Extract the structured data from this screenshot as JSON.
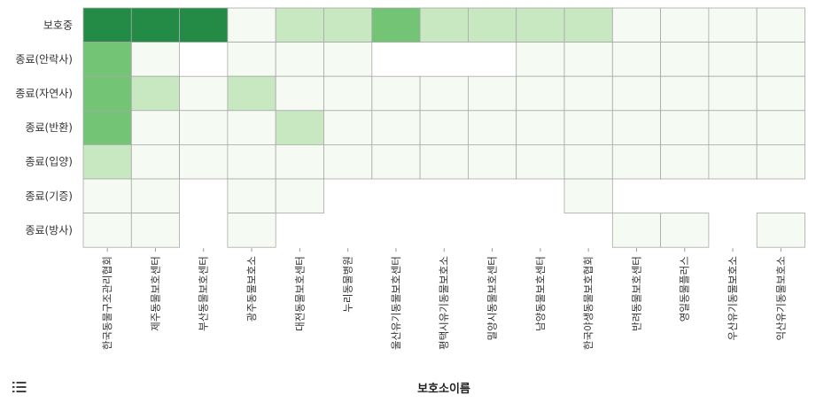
{
  "chart_data": {
    "type": "heatmap",
    "xlabel": "보호소이름",
    "ylabel": "",
    "y_categories": [
      "보호중",
      "종료(안락사)",
      "종료(자연사)",
      "종료(반환)",
      "종료(입양)",
      "종료(기증)",
      "종료(방사)"
    ],
    "x_categories": [
      "한국동물구조관리협회",
      "제주동물보호센터",
      "부산동물보호센터",
      "광주동물보호소",
      "대전동물보호센터",
      "누리동물병원",
      "울산유기동물보호센터",
      "평택시유기동물보호소",
      "밀양시동물보호센터",
      "남양동물보호센터",
      "한국야생동물보호협회",
      "반려동물보호센터",
      "영일동물플러스",
      "우산유기동물보호소",
      "익산유기동물보호소"
    ],
    "values": [
      [
        5,
        5,
        5,
        1,
        2,
        2,
        3,
        2,
        2,
        2,
        2,
        1,
        1,
        1,
        1
      ],
      [
        3,
        1,
        null,
        1,
        1,
        1,
        null,
        null,
        null,
        1,
        1,
        1,
        1,
        1,
        1
      ],
      [
        3,
        2,
        1,
        2,
        1,
        1,
        1,
        1,
        1,
        1,
        1,
        1,
        1,
        1,
        1
      ],
      [
        3,
        1,
        1,
        1,
        2,
        1,
        1,
        1,
        1,
        1,
        1,
        1,
        1,
        1,
        1
      ],
      [
        2,
        1,
        1,
        1,
        1,
        1,
        1,
        1,
        1,
        1,
        1,
        1,
        1,
        1,
        1
      ],
      [
        1,
        1,
        null,
        1,
        1,
        null,
        null,
        null,
        null,
        null,
        1,
        null,
        null,
        null,
        null
      ],
      [
        1,
        1,
        null,
        1,
        null,
        null,
        null,
        null,
        null,
        null,
        null,
        1,
        1,
        null,
        1
      ]
    ],
    "color_scale": {
      "1": "#f5fbf3",
      "2": "#c7e8c0",
      "3": "#74c476",
      "5": "#238b45"
    },
    "grid": true
  },
  "ui": {
    "menu_icon": "list-icon"
  }
}
